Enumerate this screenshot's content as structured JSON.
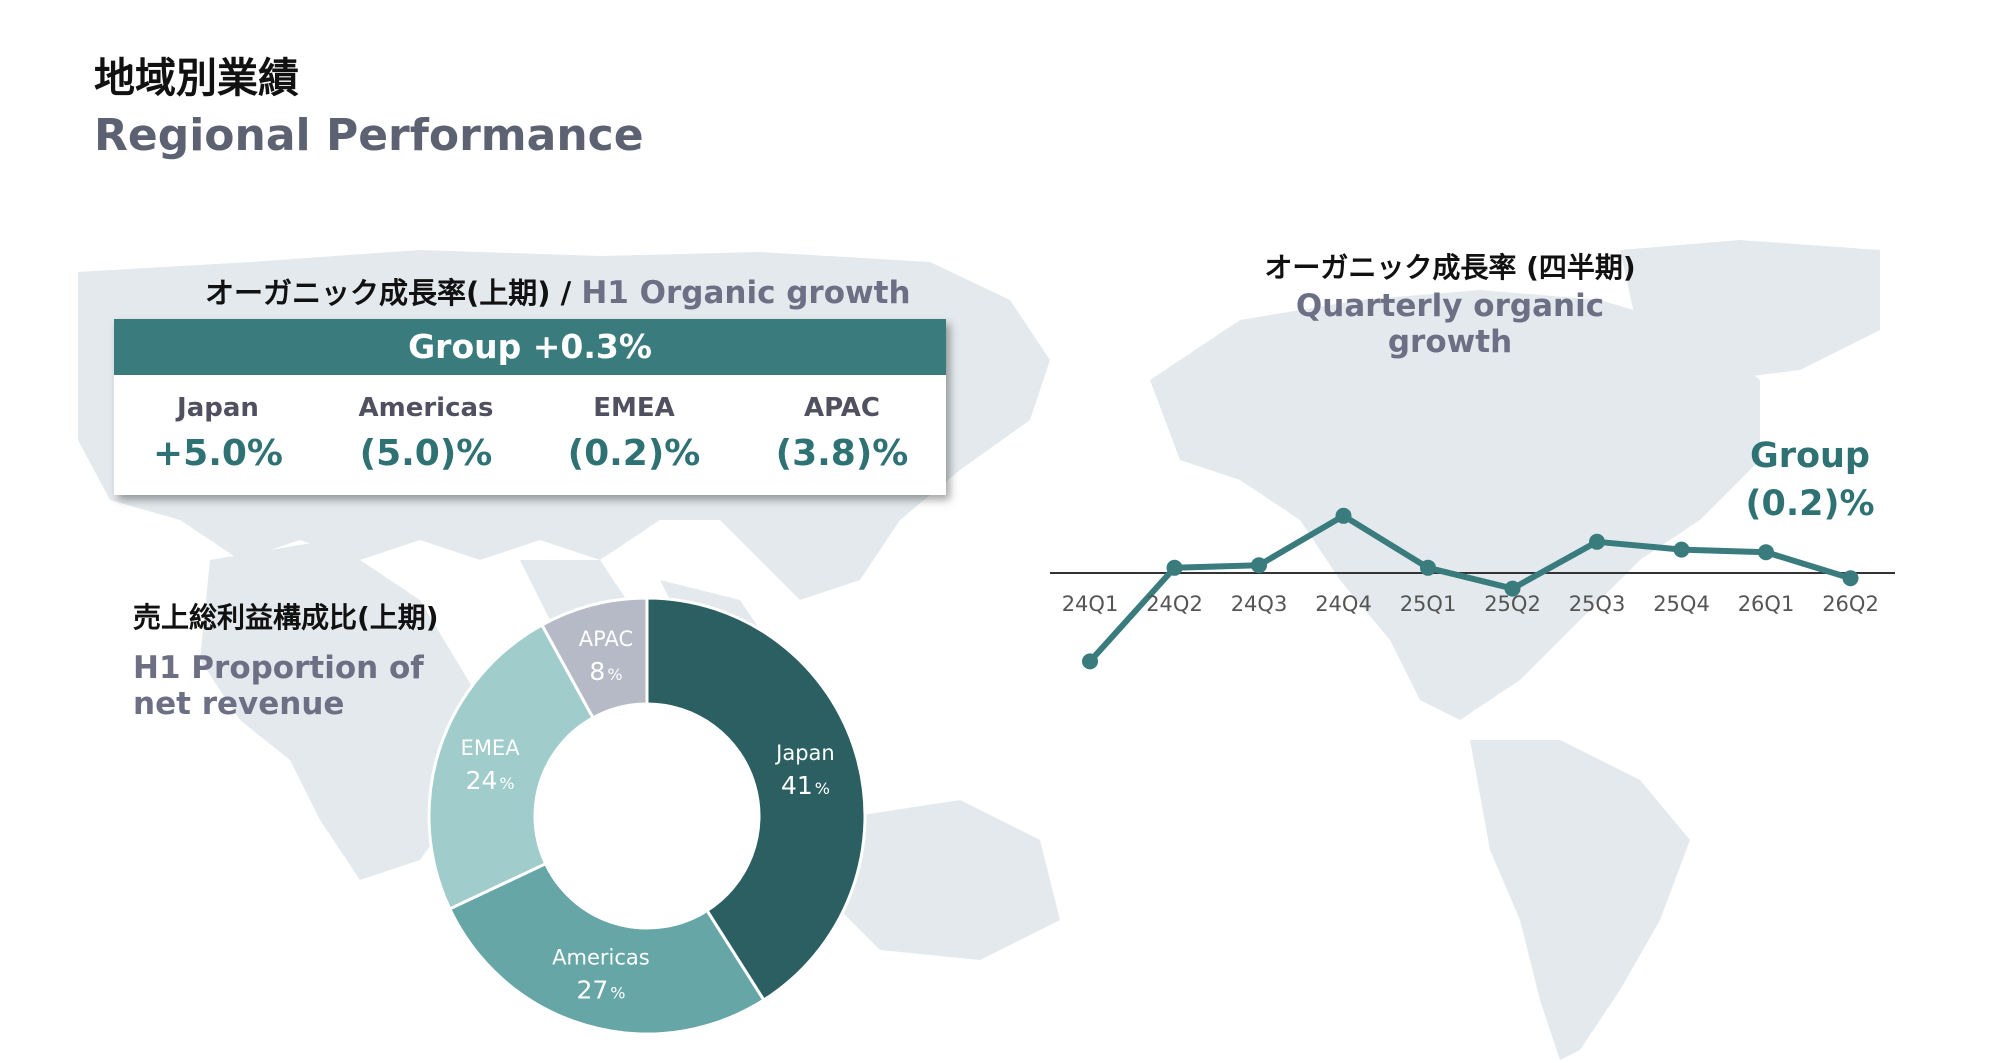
{
  "page": {
    "title_ja": "地域別業績",
    "title_en": "Regional Performance"
  },
  "h1_growth": {
    "heading_ja": "オーガニック成長率(上期) /",
    "heading_en": "H1 Organic growth",
    "group_label": "Group +0.3%",
    "regions": [
      {
        "name": "Japan",
        "value": "+5.0%"
      },
      {
        "name": "Americas",
        "value": "(5.0)%"
      },
      {
        "name": "EMEA",
        "value": "(0.2)%"
      },
      {
        "name": "APAC",
        "value": "(3.8)%"
      }
    ]
  },
  "quarterly": {
    "heading_ja": "オーガニック成長率 (四半期)",
    "heading_en": "Quarterly organic growth",
    "callout_name": "Group",
    "callout_value": "(0.2)%"
  },
  "revenue": {
    "heading_ja": "売上総利益構成比(上期)",
    "heading_en": "H1 Proportion of net revenue"
  },
  "colors": {
    "accent": "#3a7c7d",
    "heading_gray": "#6d6f85",
    "map": "#e3e9ec",
    "japan": "#2b5f61",
    "americas": "#66a6a6",
    "emea": "#a0cccb",
    "apac": "#b6b9c6"
  },
  "chart_data": [
    {
      "type": "line",
      "title": "Quarterly organic growth",
      "categories": [
        "24Q1",
        "24Q2",
        "24Q3",
        "24Q4",
        "25Q1",
        "25Q2",
        "25Q3",
        "25Q4",
        "26Q1",
        "26Q2"
      ],
      "series": [
        {
          "name": "Group",
          "values": [
            -3.4,
            0.2,
            0.3,
            2.2,
            0.2,
            -0.6,
            1.2,
            0.9,
            0.8,
            -0.2
          ]
        }
      ],
      "ylim": [
        -4,
        3
      ],
      "baseline": 0,
      "grid": false,
      "color": "#3a7c7d"
    },
    {
      "type": "pie",
      "donut": true,
      "title": "H1 Proportion of net revenue",
      "slices": [
        {
          "label": "Japan",
          "value": 41,
          "display": "41",
          "color": "#2b5f61"
        },
        {
          "label": "Americas",
          "value": 27,
          "display": "27",
          "color": "#66a6a6"
        },
        {
          "label": "EMEA",
          "value": 24,
          "display": "24",
          "color": "#a0cccb"
        },
        {
          "label": "APAC",
          "value": 8,
          "display": "8",
          "color": "#b6b9c6"
        }
      ],
      "unit": "%"
    }
  ]
}
